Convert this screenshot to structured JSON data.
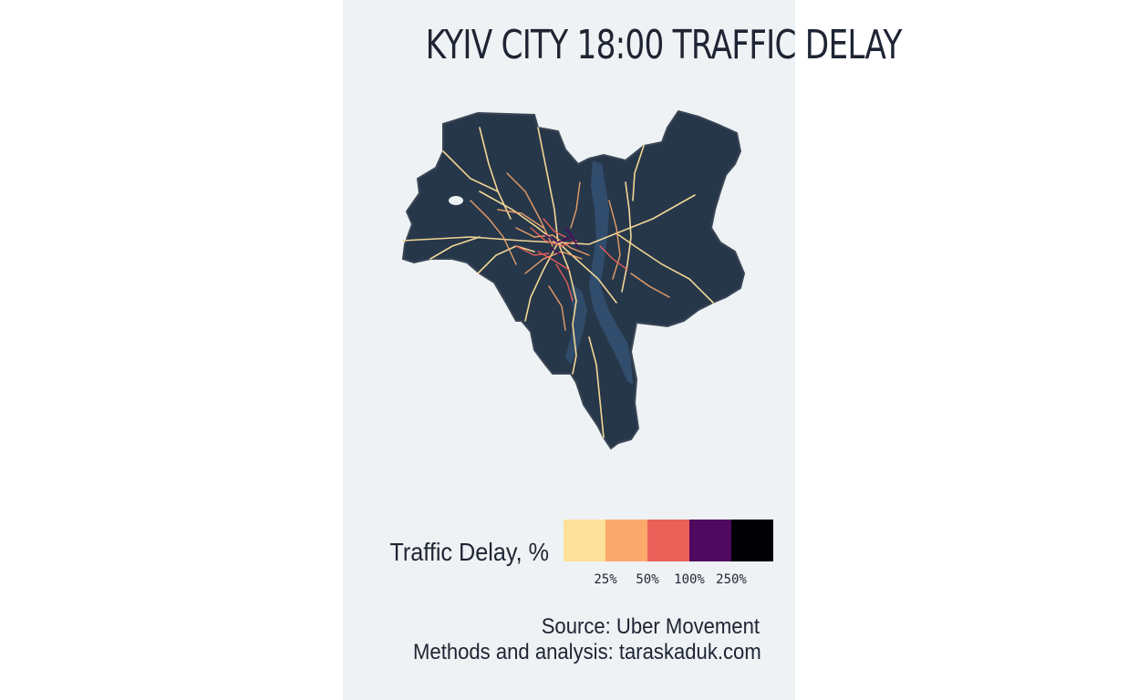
{
  "title": "KYIV CITY 18:00 TRAFFIC DELAY",
  "legend": {
    "title": "Traffic Delay, %",
    "colors": [
      "#fde09a",
      "#fba96c",
      "#eb6059",
      "#4f0a5f",
      "#000005"
    ],
    "ticks": [
      "25%",
      "50%",
      "100%",
      "250%"
    ]
  },
  "caption": {
    "source": "Source: Uber Movement",
    "methods": "Methods and analysis: taraskaduk.com"
  },
  "colors": {
    "background_panel": "#eef2f4",
    "land": "#27374a",
    "water": "#335071",
    "text": "#1e2433"
  }
}
